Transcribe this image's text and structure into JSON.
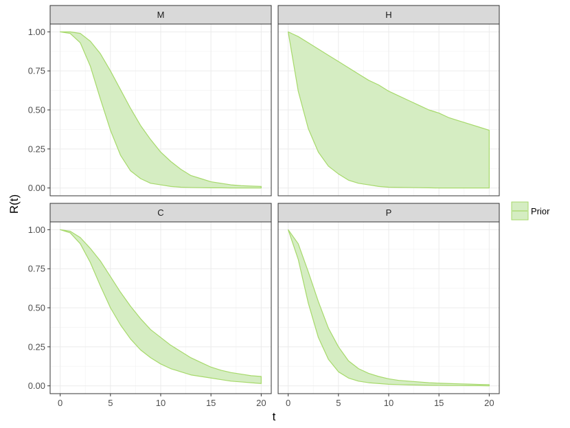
{
  "chart_data": {
    "type": "area",
    "xlabel": "t",
    "ylabel": "R(t)",
    "xlim": [
      0,
      20
    ],
    "ylim": [
      0,
      1
    ],
    "x_ticks": [
      {
        "value": 0,
        "label": "0"
      },
      {
        "value": 5,
        "label": "5"
      },
      {
        "value": 10,
        "label": "10"
      },
      {
        "value": 15,
        "label": "15"
      },
      {
        "value": 20,
        "label": "20"
      }
    ],
    "y_ticks": [
      {
        "value": 0,
        "label": "0.00"
      },
      {
        "value": 0.25,
        "label": "0.25"
      },
      {
        "value": 0.5,
        "label": "0.50"
      },
      {
        "value": 0.75,
        "label": "0.75"
      },
      {
        "value": 1,
        "label": "1.00"
      }
    ],
    "grid": true,
    "legend": {
      "position": "right",
      "entries": [
        {
          "label": "Prior",
          "color": "#a6d96a"
        }
      ]
    },
    "fill_color": "#d5edc2",
    "line_color": "#a6d96a",
    "facets": [
      {
        "title": "M",
        "x": [
          0,
          1,
          2,
          3,
          4,
          5,
          6,
          7,
          8,
          9,
          10,
          11,
          12,
          13,
          14,
          15,
          16,
          17,
          18,
          19,
          20
        ],
        "lower": [
          1.0,
          0.99,
          0.93,
          0.78,
          0.57,
          0.37,
          0.21,
          0.11,
          0.06,
          0.03,
          0.02,
          0.01,
          0.005,
          0.003,
          0.002,
          0.001,
          0.001,
          0.0,
          0.0,
          0.0,
          0.0
        ],
        "upper": [
          1.0,
          1.0,
          0.99,
          0.94,
          0.86,
          0.75,
          0.63,
          0.51,
          0.4,
          0.31,
          0.23,
          0.17,
          0.12,
          0.08,
          0.06,
          0.04,
          0.03,
          0.02,
          0.015,
          0.012,
          0.01
        ]
      },
      {
        "title": "H",
        "x": [
          0,
          1,
          2,
          3,
          4,
          5,
          6,
          7,
          8,
          9,
          10,
          11,
          12,
          13,
          14,
          15,
          16,
          17,
          18,
          19,
          20
        ],
        "lower": [
          1.0,
          0.62,
          0.38,
          0.23,
          0.14,
          0.09,
          0.05,
          0.03,
          0.02,
          0.01,
          0.005,
          0.004,
          0.003,
          0.002,
          0.001,
          0.0,
          0.0,
          0.0,
          0.0,
          0.0,
          0.0
        ],
        "upper": [
          1.0,
          0.97,
          0.93,
          0.89,
          0.85,
          0.81,
          0.77,
          0.73,
          0.69,
          0.66,
          0.62,
          0.59,
          0.56,
          0.53,
          0.5,
          0.48,
          0.45,
          0.43,
          0.41,
          0.39,
          0.37
        ]
      },
      {
        "title": "C",
        "x": [
          0,
          1,
          2,
          3,
          4,
          5,
          6,
          7,
          8,
          9,
          10,
          11,
          12,
          13,
          14,
          15,
          16,
          17,
          18,
          19,
          20
        ],
        "lower": [
          1.0,
          0.98,
          0.91,
          0.79,
          0.64,
          0.5,
          0.39,
          0.3,
          0.23,
          0.18,
          0.14,
          0.11,
          0.09,
          0.07,
          0.06,
          0.05,
          0.04,
          0.03,
          0.025,
          0.02,
          0.015
        ],
        "upper": [
          1.0,
          0.99,
          0.95,
          0.88,
          0.8,
          0.7,
          0.6,
          0.51,
          0.43,
          0.36,
          0.31,
          0.26,
          0.22,
          0.18,
          0.15,
          0.12,
          0.1,
          0.085,
          0.075,
          0.065,
          0.06
        ]
      },
      {
        "title": "P",
        "x": [
          0,
          1,
          2,
          3,
          4,
          5,
          6,
          7,
          8,
          9,
          10,
          11,
          12,
          13,
          14,
          15,
          16,
          17,
          18,
          19,
          20
        ],
        "lower": [
          1.0,
          0.81,
          0.53,
          0.31,
          0.17,
          0.09,
          0.05,
          0.03,
          0.02,
          0.015,
          0.01,
          0.008,
          0.006,
          0.005,
          0.004,
          0.003,
          0.002,
          0.002,
          0.001,
          0.001,
          0.0
        ],
        "upper": [
          1.0,
          0.91,
          0.73,
          0.54,
          0.37,
          0.25,
          0.16,
          0.11,
          0.08,
          0.06,
          0.045,
          0.035,
          0.03,
          0.025,
          0.02,
          0.017,
          0.015,
          0.013,
          0.011,
          0.009,
          0.008
        ]
      }
    ]
  }
}
